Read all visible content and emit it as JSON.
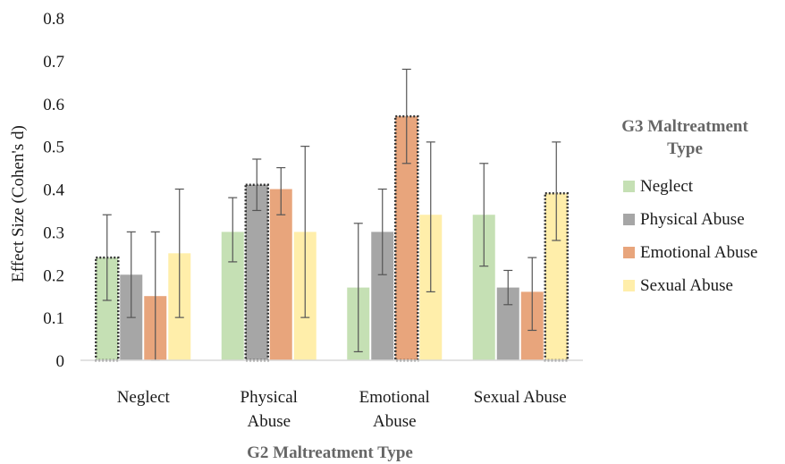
{
  "chart_data": {
    "type": "bar",
    "ylabel": "Effect Size (Cohen's d)",
    "xlabel": "G2 Maltreatment Type",
    "legend_title": "G3 Maltreatment Type",
    "legend_placement": "right",
    "ylim": [
      0,
      0.8
    ],
    "yticks": [
      "0",
      "0.1",
      "0.2",
      "0.3",
      "0.4",
      "0.5",
      "0.6",
      "0.7",
      "0.8"
    ],
    "grid": false,
    "categories": [
      [
        "Neglect"
      ],
      [
        "Physical",
        "Abuse"
      ],
      [
        "Emotional",
        "Abuse"
      ],
      [
        "Sexual Abuse"
      ]
    ],
    "series": [
      {
        "name": "Neglect",
        "color": "#c5e0b4",
        "values": [
          0.24,
          0.3,
          0.17,
          0.34
        ],
        "err_low": [
          0.14,
          0.23,
          0.02,
          0.22
        ],
        "err_high": [
          0.34,
          0.38,
          0.32,
          0.46
        ]
      },
      {
        "name": "Physical Abuse",
        "color": "#a6a6a6",
        "values": [
          0.2,
          0.41,
          0.3,
          0.17
        ],
        "err_low": [
          0.1,
          0.35,
          0.2,
          0.13
        ],
        "err_high": [
          0.3,
          0.47,
          0.4,
          0.21
        ]
      },
      {
        "name": "Emotional Abuse",
        "color": "#e8a57c",
        "values": [
          0.15,
          0.4,
          0.57,
          0.16
        ],
        "err_low": [
          0.0,
          0.34,
          0.46,
          0.07
        ],
        "err_high": [
          0.3,
          0.45,
          0.68,
          0.24
        ]
      },
      {
        "name": "Sexual Abuse",
        "color": "#ffeeaa",
        "values": [
          0.25,
          0.3,
          0.34,
          0.39
        ],
        "err_low": [
          0.1,
          0.1,
          0.16,
          0.28
        ],
        "err_high": [
          0.4,
          0.5,
          0.51,
          0.51
        ]
      }
    ],
    "highlighted": [
      [
        0,
        0
      ],
      [
        1,
        1
      ],
      [
        2,
        2
      ],
      [
        3,
        3
      ]
    ]
  }
}
